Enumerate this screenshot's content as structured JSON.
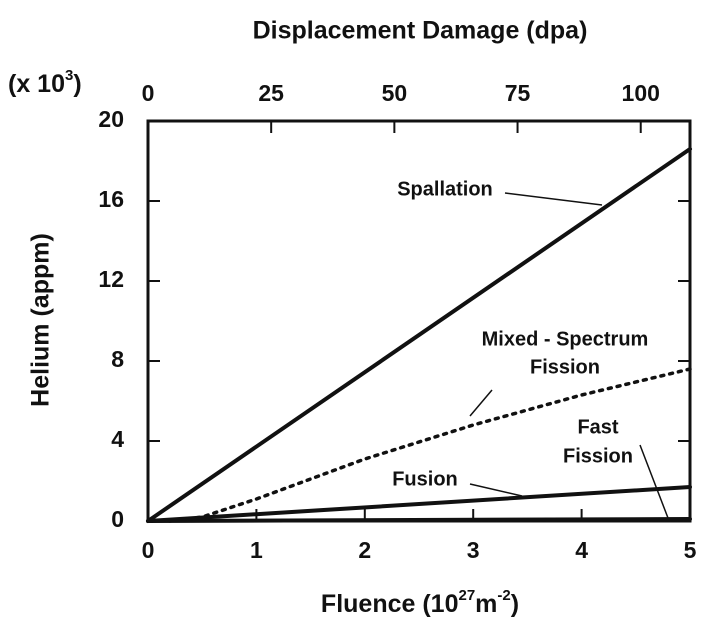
{
  "chart_data": {
    "type": "line",
    "title": "Displacement Damage (dpa)",
    "xlabel_parts": [
      "Fluence (10",
      "27",
      "m",
      "-2",
      ")"
    ],
    "ylabel": "Helium (appm)",
    "y_multiplier_parts": [
      "(x 10",
      "3",
      ")"
    ],
    "xlim": [
      0,
      5
    ],
    "xticks": [
      0,
      1,
      2,
      3,
      4,
      5
    ],
    "x2lim": [
      0,
      110
    ],
    "x2ticks": [
      0,
      25,
      50,
      75,
      100
    ],
    "ylim": [
      0,
      20
    ],
    "yticks": [
      0,
      4,
      8,
      12,
      16,
      20
    ],
    "series": [
      {
        "label": [
          "Spallation"
        ],
        "style": "solid",
        "color": "#111",
        "x": [
          0,
          5
        ],
        "values": [
          0,
          18.6
        ]
      },
      {
        "label": [
          "Mixed - Spectrum",
          "Fission"
        ],
        "style": "dotted",
        "color": "#111",
        "x": [
          0.2,
          0.5,
          1,
          2,
          3,
          4,
          5
        ],
        "values": [
          0,
          0.2,
          1.1,
          3.1,
          4.8,
          6.3,
          7.6
        ]
      },
      {
        "label": [
          "Fast",
          "Fission"
        ],
        "style": "solid",
        "color": "#111",
        "x": [
          0,
          5
        ],
        "values": [
          0,
          0.1
        ]
      },
      {
        "label": [
          "Fusion"
        ],
        "style": "solid",
        "color": "#111",
        "x": [
          0,
          5
        ],
        "values": [
          0,
          1.7
        ]
      }
    ]
  }
}
